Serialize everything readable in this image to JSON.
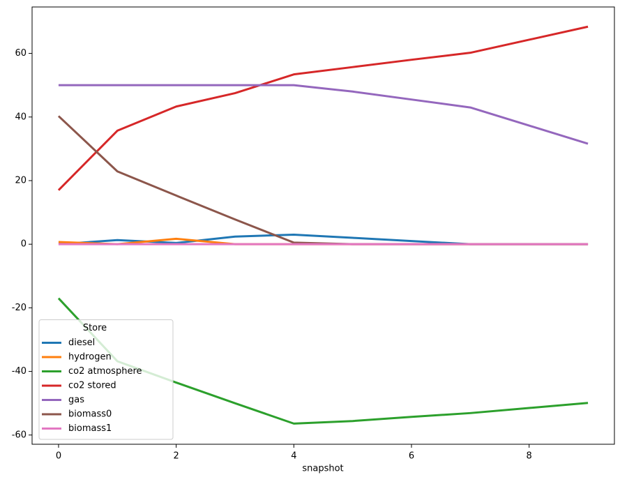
{
  "chart_data": {
    "type": "line",
    "xlabel": "snapshot",
    "x": [
      0,
      1,
      2,
      3,
      4,
      5,
      6,
      7,
      8,
      9
    ],
    "xlim": [
      -0.45,
      9.45
    ],
    "xticks": [
      0,
      2,
      4,
      6,
      8
    ],
    "ylim": [
      -62.9,
      74.6
    ],
    "yticks": [
      -60,
      -40,
      -20,
      0,
      20,
      40,
      60
    ],
    "legend_title": "Store",
    "legend_loc": "lower left",
    "series": [
      {
        "name": "diesel",
        "color": "#1f77b4",
        "values": [
          0,
          1.3,
          0.4,
          2.4,
          3.0,
          2.0,
          1.0,
          0,
          0,
          0
        ]
      },
      {
        "name": "hydrogen",
        "color": "#ff7f0e",
        "values": [
          0.7,
          0,
          1.7,
          0,
          0,
          0,
          0,
          0,
          0,
          0
        ]
      },
      {
        "name": "co2 atmosphere",
        "color": "#2ca02c",
        "values": [
          -17,
          -36.8,
          -43.5,
          -50,
          -56.4,
          -55.6,
          -54.3,
          -53.1,
          -51.5,
          -49.9
        ]
      },
      {
        "name": "co2 stored",
        "color": "#d62728",
        "values": [
          17,
          35.7,
          43.3,
          47.5,
          53.4,
          55.7,
          58,
          60.2,
          64.3,
          68.4
        ]
      },
      {
        "name": "gas",
        "color": "#9467bd",
        "values": [
          50,
          50,
          50,
          50,
          50,
          48,
          45.5,
          43,
          37.3,
          31.6
        ]
      },
      {
        "name": "biomass0",
        "color": "#8c564b",
        "values": [
          40.3,
          22.9,
          15.3,
          7.8,
          0.5,
          0,
          0,
          0,
          0,
          0
        ]
      },
      {
        "name": "biomass1",
        "color": "#e377c2",
        "values": [
          0,
          0,
          0,
          0,
          0,
          0,
          0,
          0,
          0,
          0
        ]
      }
    ]
  }
}
